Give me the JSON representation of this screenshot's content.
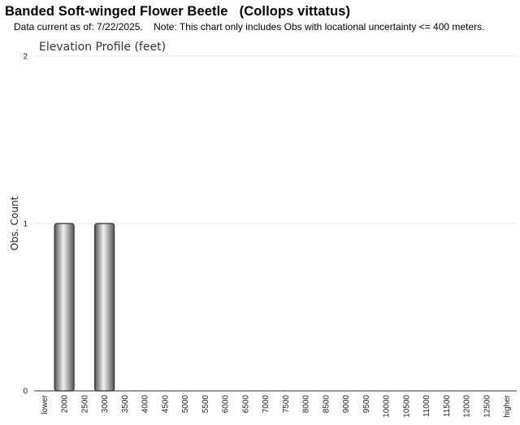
{
  "header": {
    "title": "Banded Soft-winged Flower Beetle   (Collops vittatus)",
    "subtitle": "Data current as of: 7/22/2025.    Note: This chart only includes Obs with locational uncertainty <= 400 meters."
  },
  "chart_data": {
    "type": "bar",
    "title": "Elevation Profile (feet)",
    "xlabel": "",
    "ylabel": "Obs. Count",
    "categories": [
      "lower",
      "2000",
      "2500",
      "3000",
      "3500",
      "4000",
      "4500",
      "5000",
      "5500",
      "6000",
      "6500",
      "7000",
      "7500",
      "8000",
      "8500",
      "9000",
      "9500",
      "10000",
      "10500",
      "11000",
      "11500",
      "12000",
      "12500",
      "higher"
    ],
    "values": [
      0,
      1,
      0,
      1,
      0,
      0,
      0,
      0,
      0,
      0,
      0,
      0,
      0,
      0,
      0,
      0,
      0,
      0,
      0,
      0,
      0,
      0,
      0,
      0
    ],
    "ylim": [
      0,
      2
    ],
    "yticks": [
      0,
      1,
      2
    ],
    "grid": true,
    "legend": "none",
    "colors": {
      "bar_light": "#f2f2f2",
      "bar_dark": "#555555",
      "bar_stroke": "#333333",
      "grid": "#e6e6e6",
      "axis": "#333333"
    }
  }
}
